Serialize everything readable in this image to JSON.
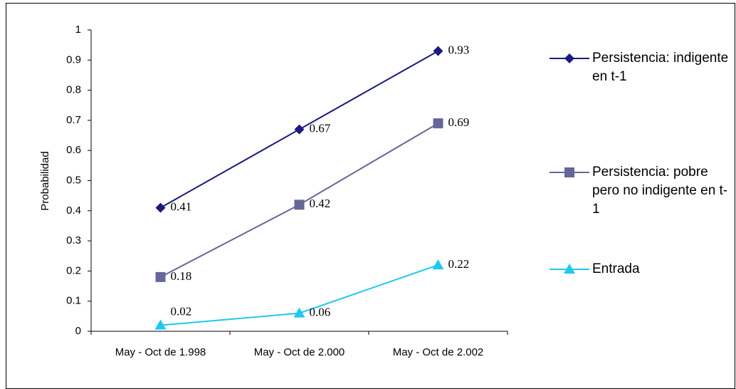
{
  "chart_data": {
    "type": "line",
    "y_label": "Probabilidad",
    "categories": [
      "May - Oct de 1.998",
      "May - Oct de 2.000",
      "May - Oct de 2.002"
    ],
    "series": [
      {
        "name": "Persistencia: indigente en t-1",
        "color": "#1a1a80",
        "marker": "diamond",
        "values": [
          0.41,
          0.67,
          0.93
        ]
      },
      {
        "name": "Persistencia: pobre pero no indigente en t-1",
        "color": "#666699",
        "marker": "square",
        "values": [
          0.18,
          0.42,
          0.69
        ]
      },
      {
        "name": "Entrada",
        "color": "#1ec8f0",
        "marker": "triangle",
        "values": [
          0.02,
          0.06,
          0.22
        ]
      }
    ],
    "ylim": [
      0,
      1
    ],
    "yticks": [
      0,
      0.1,
      0.2,
      0.3,
      0.4,
      0.5,
      0.6,
      0.7,
      0.8,
      0.9,
      1
    ]
  }
}
